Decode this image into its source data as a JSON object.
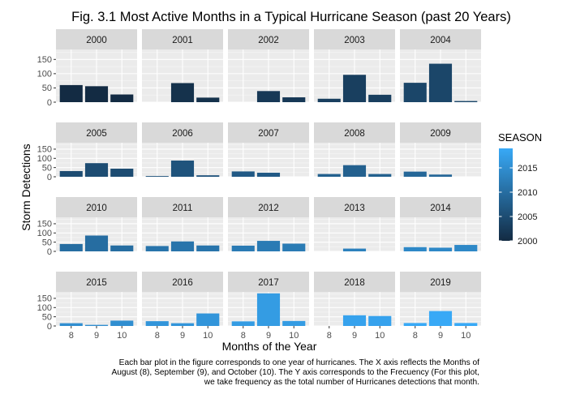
{
  "title": "Fig. 3.1 Most Active Months in a Typical Hurricane Season (past 20 Years)",
  "xlabel": "Months of the Year",
  "ylabel": "Storm Detections",
  "caption": [
    "Each bar plot in the figure corresponds to one year of hurricanes. The X axis reflects the Months of",
    "August (8), September (9), and October (10). The Y axis corresponds to the Frecuency (For this plot,",
    "we take frequency as the total number of Hurricanes detections that month."
  ],
  "legend": {
    "title": "SEASON",
    "ticks": [
      "2000",
      "2005",
      "2010",
      "2015"
    ],
    "range": [
      2000,
      2019
    ],
    "color_low": "#132B43",
    "color_high": "#38A9F6"
  },
  "chart_data": {
    "type": "bar",
    "facet_by": "SEASON",
    "categories": [
      "8",
      "9",
      "10"
    ],
    "ylim": [
      0,
      185
    ],
    "yticks": [
      0,
      50,
      100,
      150
    ],
    "grid": true,
    "legend_position": "right",
    "panels": [
      {
        "label": "2000",
        "season": 2000,
        "values": [
          60,
          56,
          27
        ]
      },
      {
        "label": "2001",
        "season": 2001,
        "values": [
          0,
          67,
          16
        ]
      },
      {
        "label": "2002",
        "season": 2002,
        "values": [
          0,
          39,
          17
        ]
      },
      {
        "label": "2003",
        "season": 2003,
        "values": [
          12,
          96,
          26
        ]
      },
      {
        "label": "2004",
        "season": 2004,
        "values": [
          68,
          135,
          4
        ]
      },
      {
        "label": "2005",
        "season": 2005,
        "values": [
          31,
          74,
          44
        ]
      },
      {
        "label": "2006",
        "season": 2006,
        "values": [
          4,
          88,
          8
        ]
      },
      {
        "label": "2007",
        "season": 2007,
        "values": [
          29,
          22,
          0
        ]
      },
      {
        "label": "2008",
        "season": 2008,
        "values": [
          15,
          63,
          15
        ]
      },
      {
        "label": "2009",
        "season": 2009,
        "values": [
          28,
          12,
          0
        ]
      },
      {
        "label": "2010",
        "season": 2010,
        "values": [
          40,
          86,
          32
        ]
      },
      {
        "label": "2011",
        "season": 2011,
        "values": [
          29,
          54,
          32
        ]
      },
      {
        "label": "2012",
        "season": 2012,
        "values": [
          31,
          57,
          42
        ]
      },
      {
        "label": "2013",
        "season": 2013,
        "values": [
          0,
          15,
          0
        ]
      },
      {
        "label": "2014",
        "season": 2014,
        "values": [
          23,
          20,
          35
        ]
      },
      {
        "label": "2015",
        "season": 2015,
        "values": [
          15,
          6,
          29
        ]
      },
      {
        "label": "2016",
        "season": 2016,
        "values": [
          26,
          15,
          68
        ]
      },
      {
        "label": "2017",
        "season": 2017,
        "values": [
          25,
          177,
          27
        ]
      },
      {
        "label": "2018",
        "season": 2018,
        "values": [
          0,
          58,
          54
        ]
      },
      {
        "label": "2019",
        "season": 2019,
        "values": [
          16,
          81,
          16
        ]
      }
    ]
  }
}
